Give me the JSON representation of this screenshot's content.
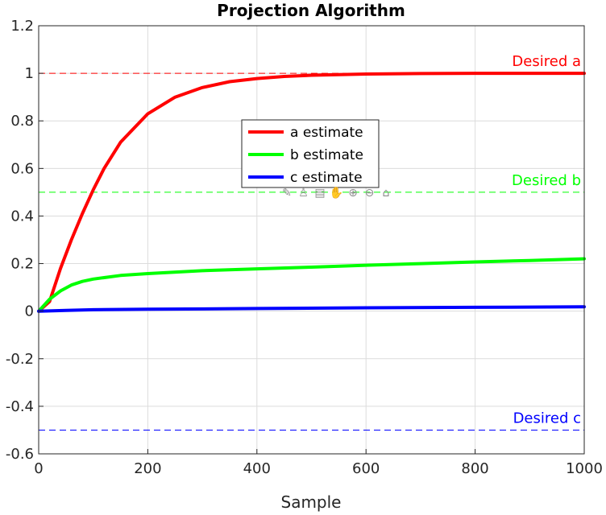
{
  "chart_data": {
    "type": "line",
    "title": "Projection Algorithm",
    "xlabel": "Sample",
    "ylabel": "",
    "xlim": [
      0,
      1000
    ],
    "ylim": [
      -0.6,
      1.2
    ],
    "xticks": [
      0,
      200,
      400,
      600,
      800,
      1000
    ],
    "xtick_labels": [
      "0",
      "200",
      "400",
      "600",
      "800",
      "1000"
    ],
    "yticks": [
      -0.6,
      -0.4,
      -0.2,
      0,
      0.2,
      0.4,
      0.6,
      0.8,
      1,
      1.2
    ],
    "ytick_labels": [
      "-0.6",
      "-0.4",
      "-0.2",
      "0",
      "0.2",
      "0.4",
      "0.6",
      "0.8",
      "1",
      "1.2"
    ],
    "grid": true,
    "legend_position": "center",
    "series": [
      {
        "name": "a estimate",
        "color": "#ff0000",
        "x": [
          0,
          20,
          40,
          60,
          80,
          100,
          120,
          150,
          200,
          250,
          300,
          350,
          400,
          450,
          500,
          600,
          700,
          800,
          900,
          1000
        ],
        "y": [
          0,
          0.04,
          0.18,
          0.3,
          0.41,
          0.51,
          0.6,
          0.71,
          0.83,
          0.9,
          0.94,
          0.965,
          0.978,
          0.987,
          0.992,
          0.997,
          0.999,
          1.0,
          1.0,
          1.0
        ]
      },
      {
        "name": "b estimate",
        "color": "#00ff00",
        "x": [
          0,
          20,
          40,
          60,
          80,
          100,
          150,
          200,
          300,
          400,
          500,
          600,
          700,
          800,
          900,
          1000
        ],
        "y": [
          0,
          0.05,
          0.085,
          0.11,
          0.125,
          0.135,
          0.15,
          0.158,
          0.17,
          0.178,
          0.185,
          0.193,
          0.2,
          0.207,
          0.213,
          0.22
        ]
      },
      {
        "name": "c estimate",
        "color": "#0000ff",
        "x": [
          0,
          50,
          100,
          200,
          400,
          600,
          800,
          1000
        ],
        "y": [
          0,
          0.003,
          0.006,
          0.008,
          0.011,
          0.014,
          0.016,
          0.018
        ]
      }
    ],
    "reference_lines": [
      {
        "label": "Desired a",
        "y": 1,
        "color": "#ff0000"
      },
      {
        "label": "Desired b",
        "y": 0.5,
        "color": "#00ff00"
      },
      {
        "label": "Desired c",
        "y": -0.5,
        "color": "#0000ff"
      }
    ]
  },
  "toolbar": {
    "icons": [
      {
        "name": "export-icon",
        "glyph": "✎"
      },
      {
        "name": "brush-icon",
        "glyph": "♙"
      },
      {
        "name": "datatips-icon",
        "glyph": "▤"
      },
      {
        "name": "pan-icon",
        "glyph": "✋"
      },
      {
        "name": "zoom-in-icon",
        "glyph": "⊕"
      },
      {
        "name": "zoom-out-icon",
        "glyph": "⊖"
      },
      {
        "name": "home-icon",
        "glyph": "⌂"
      }
    ]
  }
}
